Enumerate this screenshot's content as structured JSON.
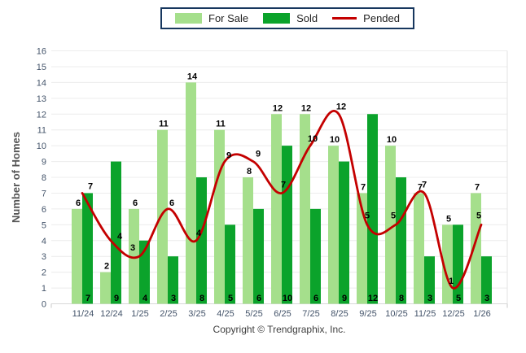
{
  "legend": {
    "items": [
      {
        "label": "For Sale",
        "color": "#A5DF8C",
        "type": "swatch"
      },
      {
        "label": "Sold",
        "color": "#0BA32B",
        "type": "swatch"
      },
      {
        "label": "Pended",
        "color": "#C40000",
        "type": "line"
      }
    ]
  },
  "chart_data": {
    "type": "bar",
    "title": "",
    "categories": [
      "11/24",
      "12/24",
      "1/25",
      "2/25",
      "3/25",
      "4/25",
      "5/25",
      "6/25",
      "7/25",
      "8/25",
      "9/25",
      "10/25",
      "11/25",
      "12/25",
      "1/26"
    ],
    "series": [
      {
        "name": "For Sale",
        "type": "bar",
        "color": "#A5DF8C",
        "values": [
          6,
          2,
          6,
          11,
          14,
          11,
          8,
          12,
          12,
          10,
          7,
          10,
          7,
          5,
          7
        ]
      },
      {
        "name": "Sold",
        "type": "bar",
        "color": "#0BA32B",
        "values": [
          7,
          9,
          4,
          3,
          8,
          5,
          6,
          10,
          6,
          9,
          12,
          8,
          3,
          5,
          3
        ]
      },
      {
        "name": "Pended",
        "type": "line",
        "color": "#C40000",
        "values": [
          7,
          4,
          3,
          6,
          4,
          9,
          9,
          7,
          10,
          12,
          5,
          5,
          7,
          1,
          5
        ]
      }
    ],
    "xlabel": "",
    "ylabel": "Number of Homes",
    "ylim": [
      0,
      16
    ],
    "ytick_step": 1,
    "grid": true,
    "legend_position": "top-center"
  },
  "footer": {
    "copyright": "Copyright © Trendgraphix, Inc."
  }
}
